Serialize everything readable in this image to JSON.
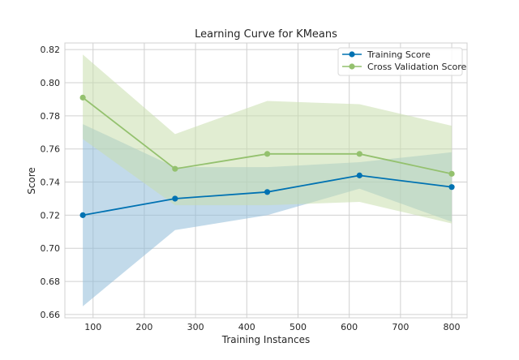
{
  "chart_data": {
    "type": "line",
    "title": "Learning Curve for KMeans",
    "xlabel": "Training Instances",
    "ylabel": "Score",
    "xlim": [
      45,
      830
    ],
    "ylim": [
      0.658,
      0.824
    ],
    "xticks": [
      100,
      200,
      300,
      400,
      500,
      600,
      700,
      800
    ],
    "yticks": [
      0.66,
      0.68,
      0.7,
      0.72,
      0.74,
      0.76,
      0.78,
      0.8,
      0.82
    ],
    "grid": true,
    "legend_position": "top-right",
    "x": [
      80,
      260,
      440,
      620,
      800
    ],
    "series": [
      {
        "name": "Training Score",
        "color": "#0072b2",
        "band_color": "#8fbcd8",
        "values": [
          0.72,
          0.73,
          0.734,
          0.744,
          0.737
        ],
        "upper": [
          0.775,
          0.749,
          0.749,
          0.752,
          0.758
        ],
        "lower": [
          0.665,
          0.711,
          0.72,
          0.736,
          0.716
        ]
      },
      {
        "name": "Cross Validation Score",
        "color": "#94c16e",
        "band_color": "#c9dfad",
        "values": [
          0.791,
          0.748,
          0.757,
          0.757,
          0.745
        ],
        "upper": [
          0.817,
          0.769,
          0.789,
          0.787,
          0.774
        ],
        "lower": [
          0.766,
          0.726,
          0.726,
          0.728,
          0.715
        ]
      }
    ]
  }
}
